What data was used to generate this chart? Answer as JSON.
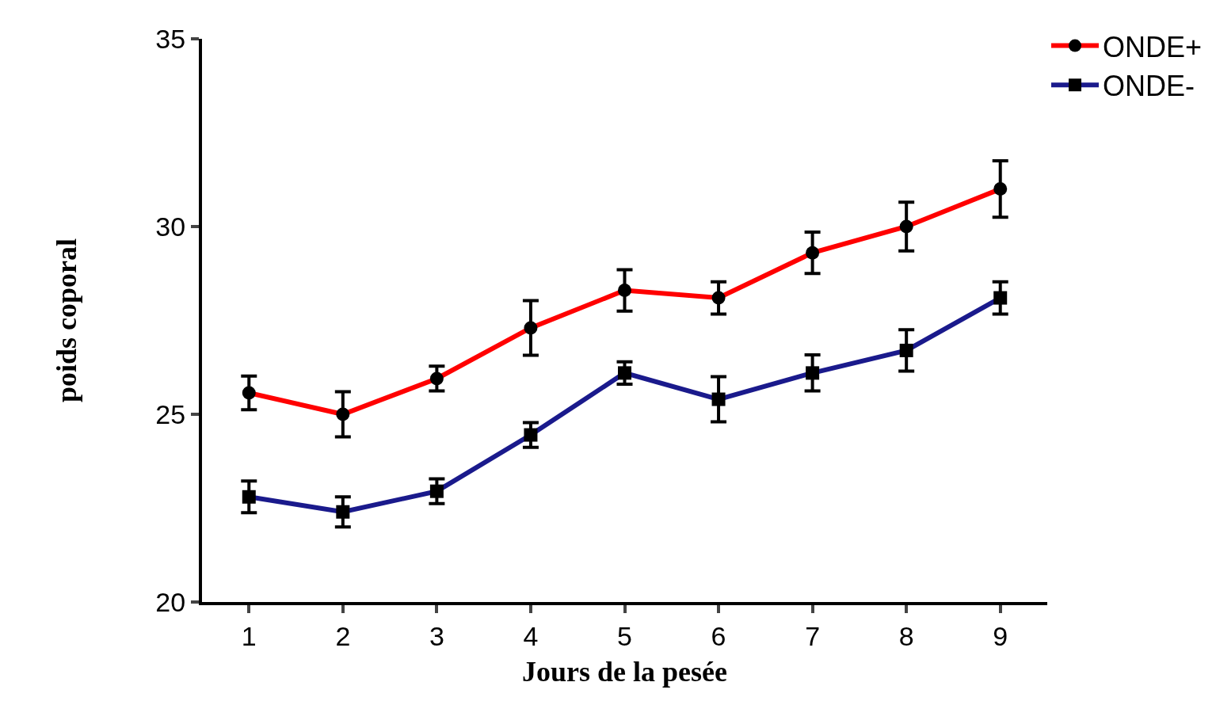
{
  "chart_data": {
    "type": "line",
    "xlabel": "Jours de la pesée",
    "ylabel": "poids coporal",
    "x": [
      1,
      2,
      3,
      4,
      5,
      6,
      7,
      8,
      9
    ],
    "series": [
      {
        "name": "ONDE+",
        "color": "#ff0000",
        "marker": "circle",
        "values": [
          25.57,
          25.0,
          25.95,
          27.3,
          28.3,
          28.1,
          29.3,
          30.0,
          31.0
        ],
        "errors": [
          0.45,
          0.6,
          0.33,
          0.73,
          0.55,
          0.43,
          0.55,
          0.65,
          0.75
        ]
      },
      {
        "name": "ONDE-",
        "color": "#1a1a8c",
        "marker": "square",
        "values": [
          22.8,
          22.4,
          22.95,
          24.45,
          26.1,
          25.4,
          26.1,
          26.7,
          28.1
        ],
        "errors": [
          0.42,
          0.4,
          0.33,
          0.33,
          0.3,
          0.6,
          0.48,
          0.55,
          0.43
        ]
      }
    ],
    "xlim": [
      0.5,
      9.5
    ],
    "xticks": [
      1,
      2,
      3,
      4,
      5,
      6,
      7,
      8,
      9
    ],
    "ylim": [
      20,
      35
    ],
    "yticks": [
      20,
      25,
      30,
      35
    ],
    "legend": "top right",
    "line_style": "solid"
  }
}
